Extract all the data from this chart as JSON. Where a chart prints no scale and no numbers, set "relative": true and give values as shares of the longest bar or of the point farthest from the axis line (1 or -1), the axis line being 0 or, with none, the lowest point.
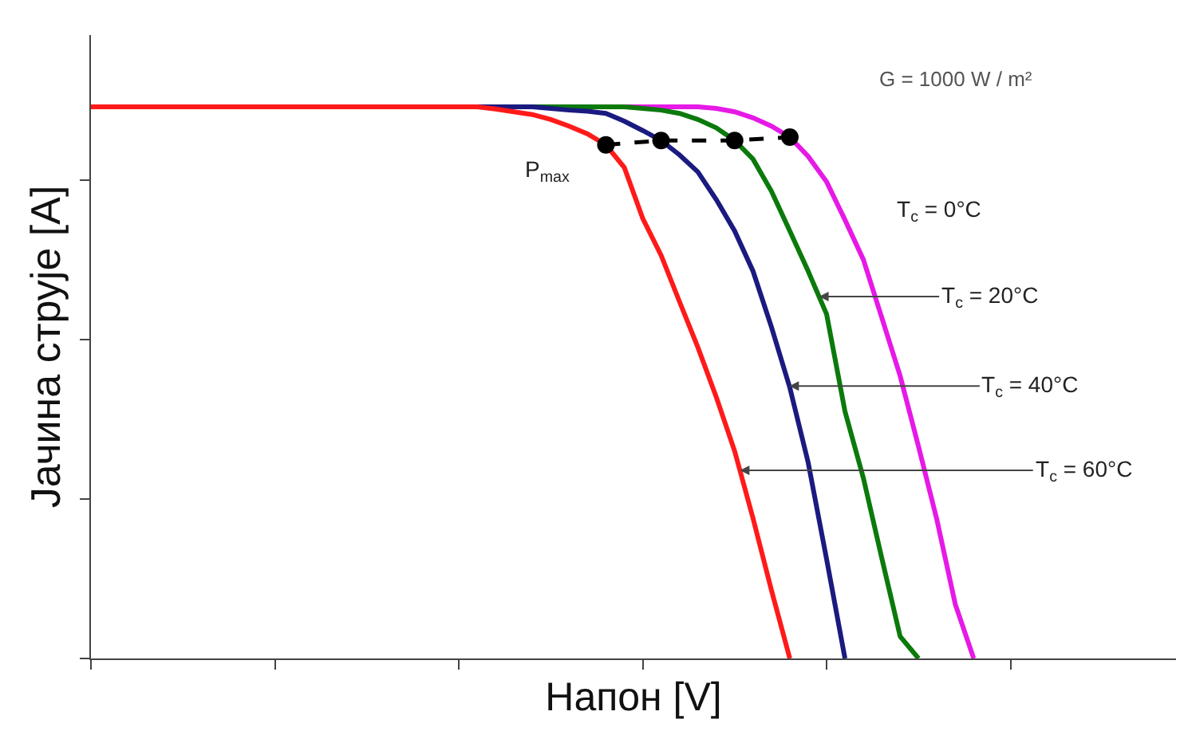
{
  "chart_data": {
    "type": "line",
    "relative": true,
    "xlabel": "Напон [V]",
    "ylabel": "Јачина струје [A]",
    "annotations": [
      "G = 1000 W / m²"
    ],
    "categories": [
      null,
      null,
      null,
      null,
      null,
      null,
      null,
      null,
      null,
      null,
      null,
      null,
      null,
      null,
      null,
      null,
      null,
      null,
      null,
      null,
      null,
      null,
      null,
      null,
      null,
      null,
      null,
      null,
      null,
      null,
      null,
      null,
      null,
      null,
      null,
      null,
      null,
      null,
      null,
      null,
      null,
      null,
      null,
      null,
      null,
      null,
      null,
      null,
      null,
      null,
      null,
      null,
      null,
      null,
      null,
      null,
      null,
      null,
      null,
      null
    ],
    "marker": "none",
    "line_style": "solid",
    "series": [
      {
        "name": "T$_{c}$ = 0°C",
        "color": "#e619e6",
        "values": [
          null,
          null,
          null,
          null,
          null,
          null,
          null,
          null,
          null,
          null,
          null,
          null,
          null,
          null,
          null,
          null,
          null,
          null,
          null,
          null,
          null,
          null,
          null,
          null,
          null,
          null,
          null,
          null,
          null,
          1,
          1,
          1,
          1,
          1,
          0.997,
          0.991,
          0.98,
          0.965,
          0.945,
          0.91,
          0.864,
          0.795,
          0.723,
          0.618,
          0.512,
          0.384,
          0.251,
          0.098,
          0,
          null,
          null,
          null,
          null,
          null,
          null,
          null,
          null,
          null,
          null,
          null
        ]
      },
      {
        "name": "T$_{c}$ = 20°C",
        "color": "#0b7a0b",
        "values": [
          null,
          null,
          null,
          null,
          null,
          null,
          null,
          null,
          null,
          null,
          null,
          null,
          null,
          null,
          null,
          null,
          null,
          null,
          null,
          null,
          null,
          null,
          null,
          null,
          1,
          1,
          1,
          1,
          1,
          1,
          0.997,
          0.994,
          0.988,
          0.977,
          0.962,
          0.939,
          0.905,
          0.847,
          0.775,
          0.702,
          0.624,
          0.448,
          0.327,
          0.182,
          0.04,
          0,
          null,
          null,
          null,
          null,
          null,
          null,
          null,
          null,
          null,
          null,
          null,
          null,
          null,
          null
        ]
      },
      {
        "name": "T$_{c}$ = 40°C",
        "color": "#1a1a80",
        "values": [
          null,
          null,
          null,
          null,
          null,
          null,
          null,
          null,
          null,
          null,
          null,
          null,
          null,
          null,
          null,
          null,
          null,
          null,
          null,
          null,
          null,
          1,
          1,
          1,
          1,
          0.997,
          0.994,
          0.992,
          0.988,
          0.974,
          0.957,
          0.939,
          0.913,
          0.882,
          0.832,
          0.775,
          0.702,
          0.601,
          0.491,
          0.355,
          0.18,
          0,
          null,
          null,
          null,
          null,
          null,
          null,
          null,
          null,
          null,
          null,
          null,
          null,
          null,
          null,
          null,
          null,
          null,
          null
        ]
      },
      {
        "name": "T$_{c}$ = 60°C",
        "color": "#ff1a1a",
        "values": [
          1,
          1,
          1,
          1,
          1,
          1,
          1,
          1,
          1,
          1,
          1,
          1,
          1,
          1,
          1,
          1,
          1,
          1,
          1,
          1,
          1,
          1,
          0.996,
          0.991,
          0.986,
          0.977,
          0.965,
          0.951,
          0.931,
          0.89,
          0.798,
          0.731,
          0.647,
          0.564,
          0.474,
          0.376,
          0.254,
          0.124,
          0,
          null,
          null,
          null,
          null,
          null,
          null,
          null,
          null,
          null,
          null,
          null,
          null,
          null,
          null,
          null,
          null,
          null,
          null,
          null,
          null,
          null
        ]
      },
      {
        "name": "P$_{max}$",
        "color": "#000000",
        "marker": "circle",
        "line_style": "dashed",
        "values": [
          null,
          null,
          null,
          null,
          null,
          null,
          null,
          null,
          null,
          null,
          null,
          null,
          null,
          null,
          null,
          null,
          null,
          null,
          null,
          null,
          null,
          null,
          null,
          null,
          null,
          null,
          null,
          null,
          0.931,
          null,
          null,
          0.939,
          null,
          null,
          null,
          0.939,
          null,
          null,
          0.945,
          null,
          null,
          null,
          null,
          null,
          null,
          null,
          null,
          null,
          null,
          null,
          null,
          null,
          null,
          null,
          null,
          null,
          null,
          null,
          null,
          null
        ]
      }
    ]
  }
}
